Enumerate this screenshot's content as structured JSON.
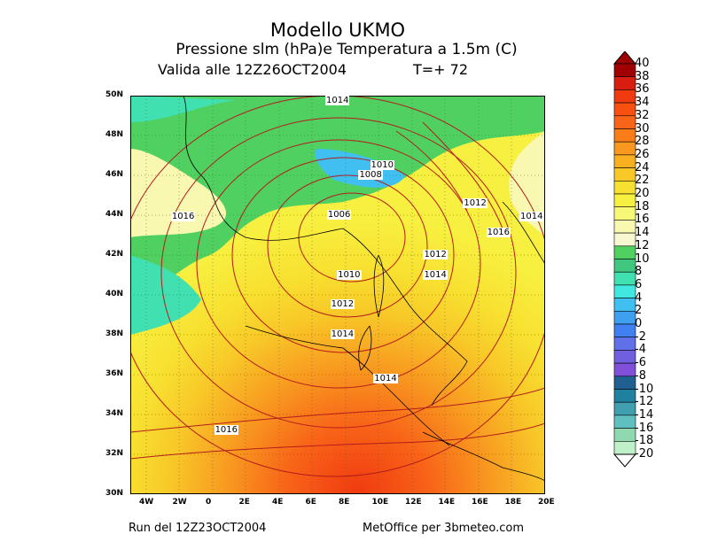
{
  "header": {
    "title": "Modello UKMO",
    "subtitle": "Pressione slm (hPa)e Temperatura a 1.5m (C)",
    "valid_date": "Valida alle 12Z26OCT2004",
    "valid_t": "T=+ 72"
  },
  "footer": {
    "run": "Run del 12Z23OCT2004",
    "credit": "MetOffice per 3bmeteo.com"
  },
  "axes": {
    "lat_labels": [
      "50N",
      "48N",
      "46N",
      "44N",
      "42N",
      "40N",
      "38N",
      "36N",
      "34N",
      "32N",
      "30N"
    ],
    "lon_labels": [
      "4W",
      "2W",
      "0",
      "2E",
      "4E",
      "6E",
      "8E",
      "10E",
      "12E",
      "14E",
      "16E",
      "18E",
      "20E"
    ]
  },
  "colorbar": {
    "labels": [
      "40",
      "38",
      "36",
      "34",
      "32",
      "30",
      "28",
      "26",
      "24",
      "22",
      "20",
      "18",
      "16",
      "14",
      "12",
      "10",
      "8",
      "6",
      "4",
      "2",
      "0",
      "-2",
      "-4",
      "-6",
      "-8",
      "-10",
      "-12",
      "-14",
      "-16",
      "-18",
      "-20"
    ],
    "colors": [
      "#a00000",
      "#d81e10",
      "#f03a10",
      "#f85010",
      "#f86418",
      "#f87c18",
      "#f89820",
      "#f8b020",
      "#f8c828",
      "#f8e030",
      "#f8f040",
      "#f8f878",
      "#f8f8b0",
      "#f8f8d0",
      "#50d060",
      "#40c880",
      "#40e0b0",
      "#40e8e0",
      "#40c0f0",
      "#40a0f0",
      "#4080f0",
      "#6070e8",
      "#7060e0",
      "#8050d8",
      "#206090",
      "#2080a0",
      "#40a0b0",
      "#60c0c0",
      "#90d8b0",
      "#c0f0c8"
    ],
    "colors_note": ""
  },
  "isobars": [
    {
      "label": "1014",
      "lon": 7.5,
      "lat": 50.0
    },
    {
      "label": "1010",
      "lon": 10.2,
      "lat": 46.5
    },
    {
      "label": "1008",
      "lon": 9.5,
      "lat": 46.0
    },
    {
      "label": "1006",
      "lon": 7.6,
      "lat": 44.0
    },
    {
      "label": "1012",
      "lon": 15.8,
      "lat": 44.6
    },
    {
      "label": "1014",
      "lon": 19.2,
      "lat": 43.9
    },
    {
      "label": "1016",
      "lon": 17.2,
      "lat": 43.1
    },
    {
      "label": "1016",
      "lon": -1.8,
      "lat": 43.9
    },
    {
      "label": "1012",
      "lon": 13.4,
      "lat": 42.0
    },
    {
      "label": "1014",
      "lon": 13.4,
      "lat": 41.0
    },
    {
      "label": "1010",
      "lon": 8.2,
      "lat": 41.0
    },
    {
      "label": "1012",
      "lon": 7.8,
      "lat": 39.5
    },
    {
      "label": "1014",
      "lon": 7.8,
      "lat": 38.0
    },
    {
      "label": "1014",
      "lon": 10.4,
      "lat": 35.8
    },
    {
      "label": "1016",
      "lon": 0.8,
      "lat": 33.2
    }
  ]
}
